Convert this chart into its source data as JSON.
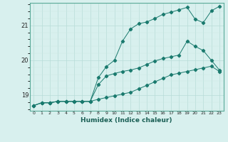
{
  "xlabel": "Humidex (Indice chaleur)",
  "ylabel": "",
  "bg_color": "#d8f0ee",
  "line_color": "#1a7a6e",
  "grid_color_major": "#b8dcd8",
  "grid_color_minor": "#cde8e4",
  "xlim": [
    -0.5,
    23.5
  ],
  "ylim": [
    18.55,
    21.65
  ],
  "yticks": [
    19,
    20,
    21
  ],
  "xticks": [
    0,
    1,
    2,
    3,
    4,
    5,
    6,
    7,
    8,
    9,
    10,
    11,
    12,
    13,
    14,
    15,
    16,
    17,
    18,
    19,
    20,
    21,
    22,
    23
  ],
  "series": [
    {
      "x": [
        0,
        1,
        2,
        3,
        4,
        5,
        6,
        7,
        8,
        9,
        10,
        11,
        12,
        13,
        14,
        15,
        16,
        17,
        18,
        19,
        20,
        21,
        22,
        23
      ],
      "y": [
        18.7,
        18.78,
        18.78,
        18.82,
        18.82,
        18.82,
        18.82,
        18.82,
        19.5,
        19.82,
        20.0,
        20.55,
        20.9,
        21.05,
        21.1,
        21.2,
        21.32,
        21.38,
        21.45,
        21.52,
        21.18,
        21.08,
        21.42,
        21.55
      ]
    },
    {
      "x": [
        0,
        1,
        2,
        3,
        4,
        5,
        6,
        7,
        8,
        9,
        10,
        11,
        12,
        13,
        14,
        15,
        16,
        17,
        18,
        19,
        20,
        21,
        22,
        23
      ],
      "y": [
        18.7,
        18.78,
        18.78,
        18.82,
        18.82,
        18.82,
        18.82,
        18.82,
        19.3,
        19.55,
        19.62,
        19.68,
        19.72,
        19.78,
        19.88,
        19.98,
        20.05,
        20.1,
        20.15,
        20.55,
        20.4,
        20.28,
        20.0,
        19.72
      ]
    },
    {
      "x": [
        0,
        1,
        2,
        3,
        4,
        5,
        6,
        7,
        8,
        9,
        10,
        11,
        12,
        13,
        14,
        15,
        16,
        17,
        18,
        19,
        20,
        21,
        22,
        23
      ],
      "y": [
        18.7,
        18.78,
        18.78,
        18.82,
        18.82,
        18.82,
        18.82,
        18.82,
        18.88,
        18.93,
        18.98,
        19.03,
        19.08,
        19.18,
        19.28,
        19.38,
        19.48,
        19.58,
        19.63,
        19.68,
        19.73,
        19.78,
        19.83,
        19.68
      ]
    }
  ]
}
